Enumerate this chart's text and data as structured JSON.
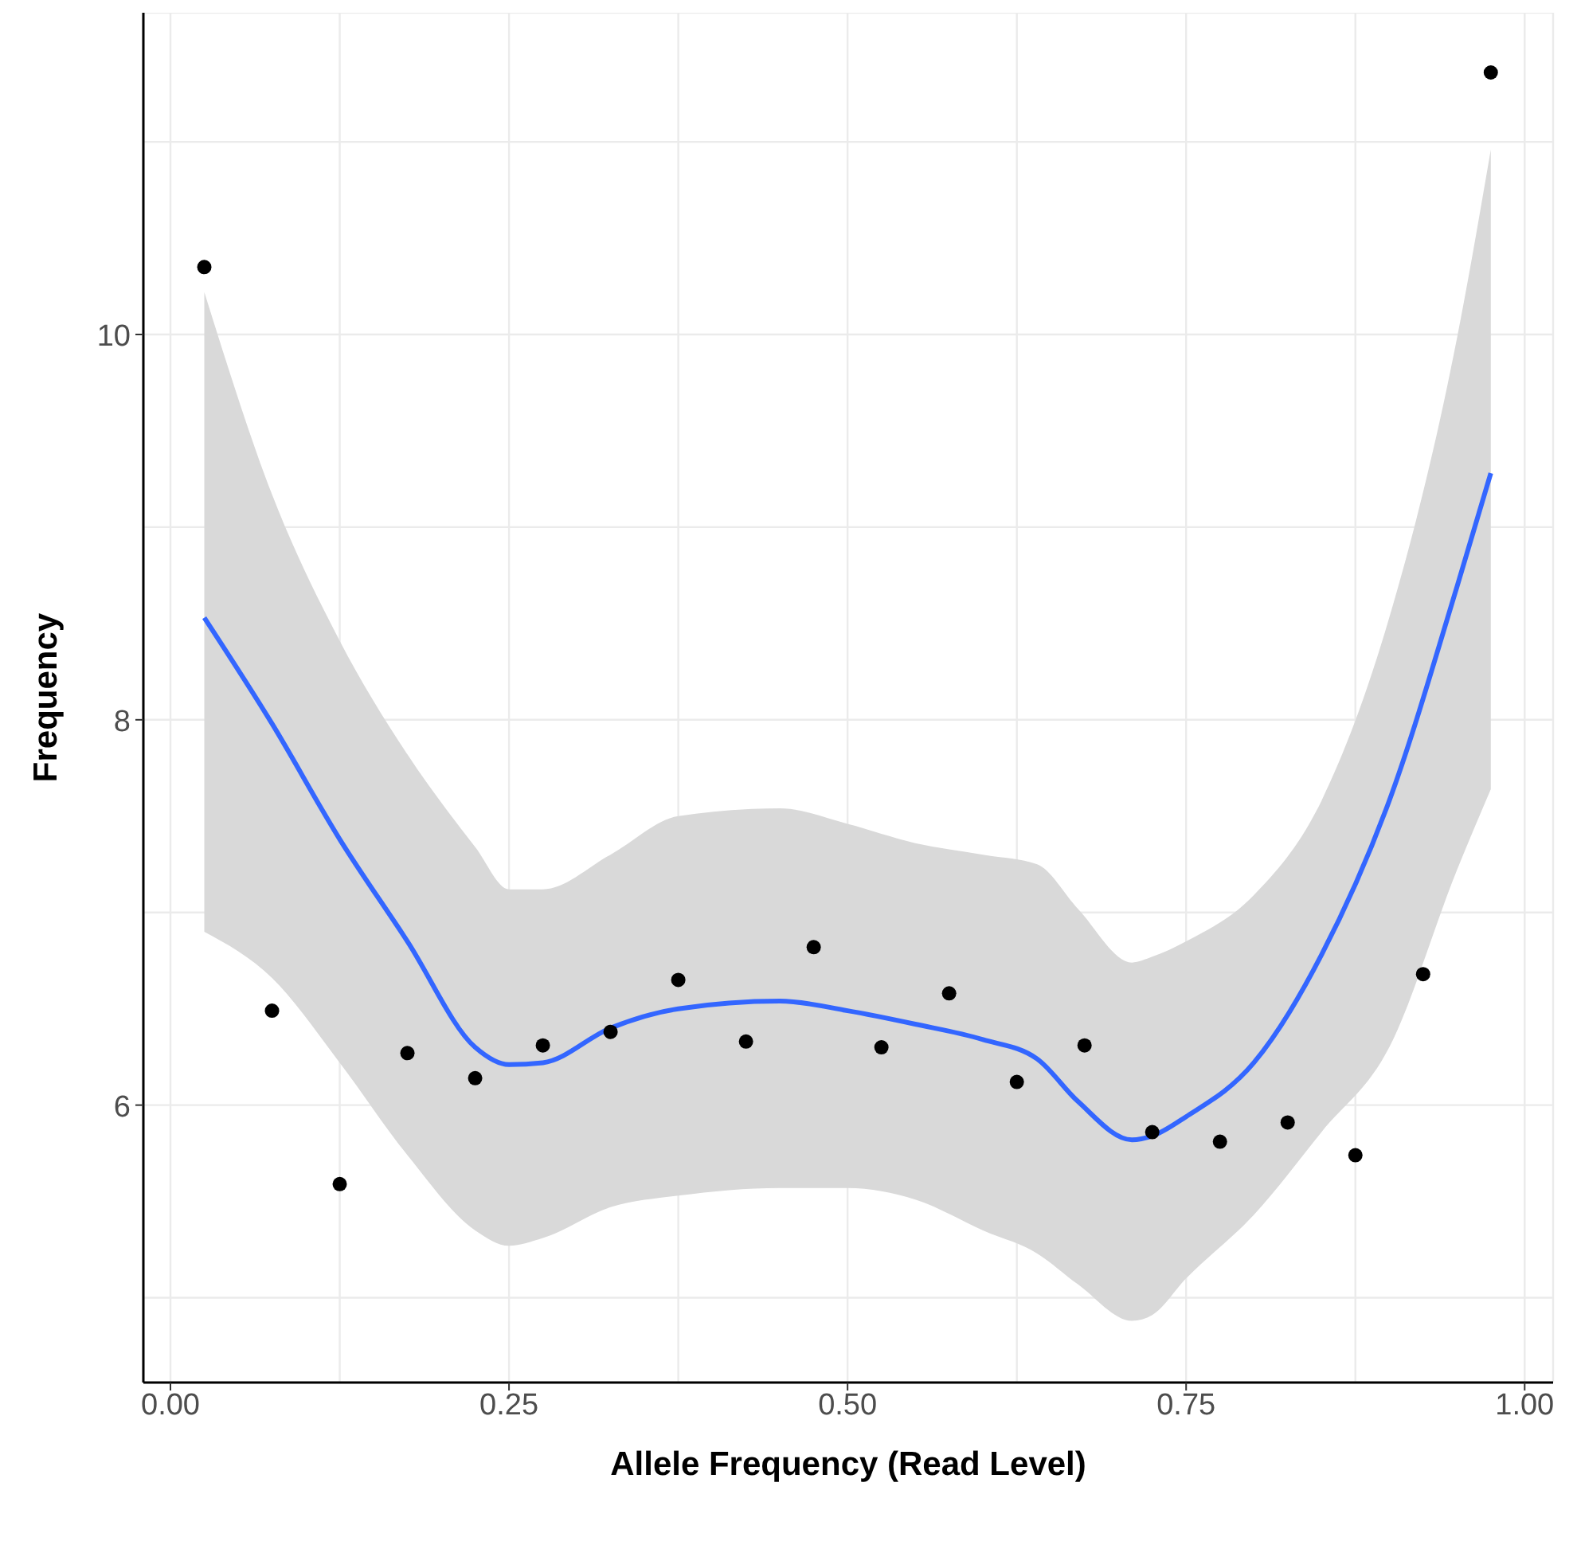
{
  "chart_data": {
    "type": "scatter",
    "xlabel": "Allele Frequency (Read Level)",
    "ylabel": "Frequency",
    "xlim": [
      -0.02,
      1.021
    ],
    "xticks": [
      {
        "value": 0,
        "label": "0.00"
      },
      {
        "value": 0.125,
        "label": null
      },
      {
        "value": 0.25,
        "label": "0.25"
      },
      {
        "value": 0.375,
        "label": null
      },
      {
        "value": 0.5,
        "label": "0.50"
      },
      {
        "value": 0.625,
        "label": null
      },
      {
        "value": 0.75,
        "label": "0.75"
      },
      {
        "value": 0.875,
        "label": null
      },
      {
        "value": 1,
        "label": "1.00"
      }
    ],
    "ylim": [
      4.56,
      11.67
    ],
    "yticks": [
      {
        "value": 5,
        "label": null
      },
      6,
      {
        "value": 7,
        "label": null
      },
      8,
      {
        "value": 9,
        "label": null
      },
      10,
      {
        "value": 11,
        "label": null
      }
    ],
    "grid": true,
    "series": [
      {
        "type": "line",
        "marker": "none",
        "color": "#3366ff",
        "x": [
          0.025,
          0.075,
          0.125,
          0.175,
          0.225,
          0.25,
          0.275,
          0.325,
          0.375,
          0.45,
          0.5,
          0.55,
          0.6,
          0.64,
          0.67,
          0.71,
          0.725,
          0.75,
          0.8,
          0.85,
          0.9,
          0.95,
          0.975
        ],
        "values": [
          8.53,
          7.98,
          7.38,
          6.85,
          6.3,
          6.21,
          6.22,
          6.4,
          6.5,
          6.54,
          6.49,
          6.42,
          6.34,
          6.24,
          6.02,
          5.82,
          5.84,
          5.94,
          6.22,
          6.78,
          7.58,
          8.69,
          9.28
        ],
        "upper": [
          10.22,
          9.17,
          8.41,
          7.82,
          7.34,
          7.12,
          7.12,
          7.3,
          7.5,
          7.54,
          7.46,
          7.36,
          7.3,
          7.25,
          7.02,
          6.74,
          6.77,
          6.85,
          7.09,
          7.58,
          8.53,
          9.98,
          10.96
        ],
        "lower": [
          6.9,
          6.66,
          6.22,
          5.74,
          5.35,
          5.27,
          5.31,
          5.47,
          5.53,
          5.57,
          5.57,
          5.51,
          5.35,
          5.23,
          5.07,
          4.88,
          4.91,
          5.1,
          5.43,
          5.86,
          6.3,
          7.22,
          7.64
        ]
      },
      {
        "marker": "circle",
        "color": "#000000",
        "x": [
          0.025,
          0.075,
          0.125,
          0.175,
          0.225,
          0.275,
          0.325,
          0.375,
          0.425,
          0.475,
          0.525,
          0.575,
          0.625,
          0.675,
          0.725,
          0.775,
          0.825,
          0.875,
          0.925,
          0.975
        ],
        "values": [
          10.35,
          6.49,
          5.59,
          6.27,
          6.14,
          6.31,
          6.38,
          6.65,
          6.33,
          6.82,
          6.3,
          6.58,
          6.12,
          6.31,
          5.86,
          5.81,
          5.91,
          5.74,
          6.68,
          11.36
        ]
      }
    ]
  }
}
